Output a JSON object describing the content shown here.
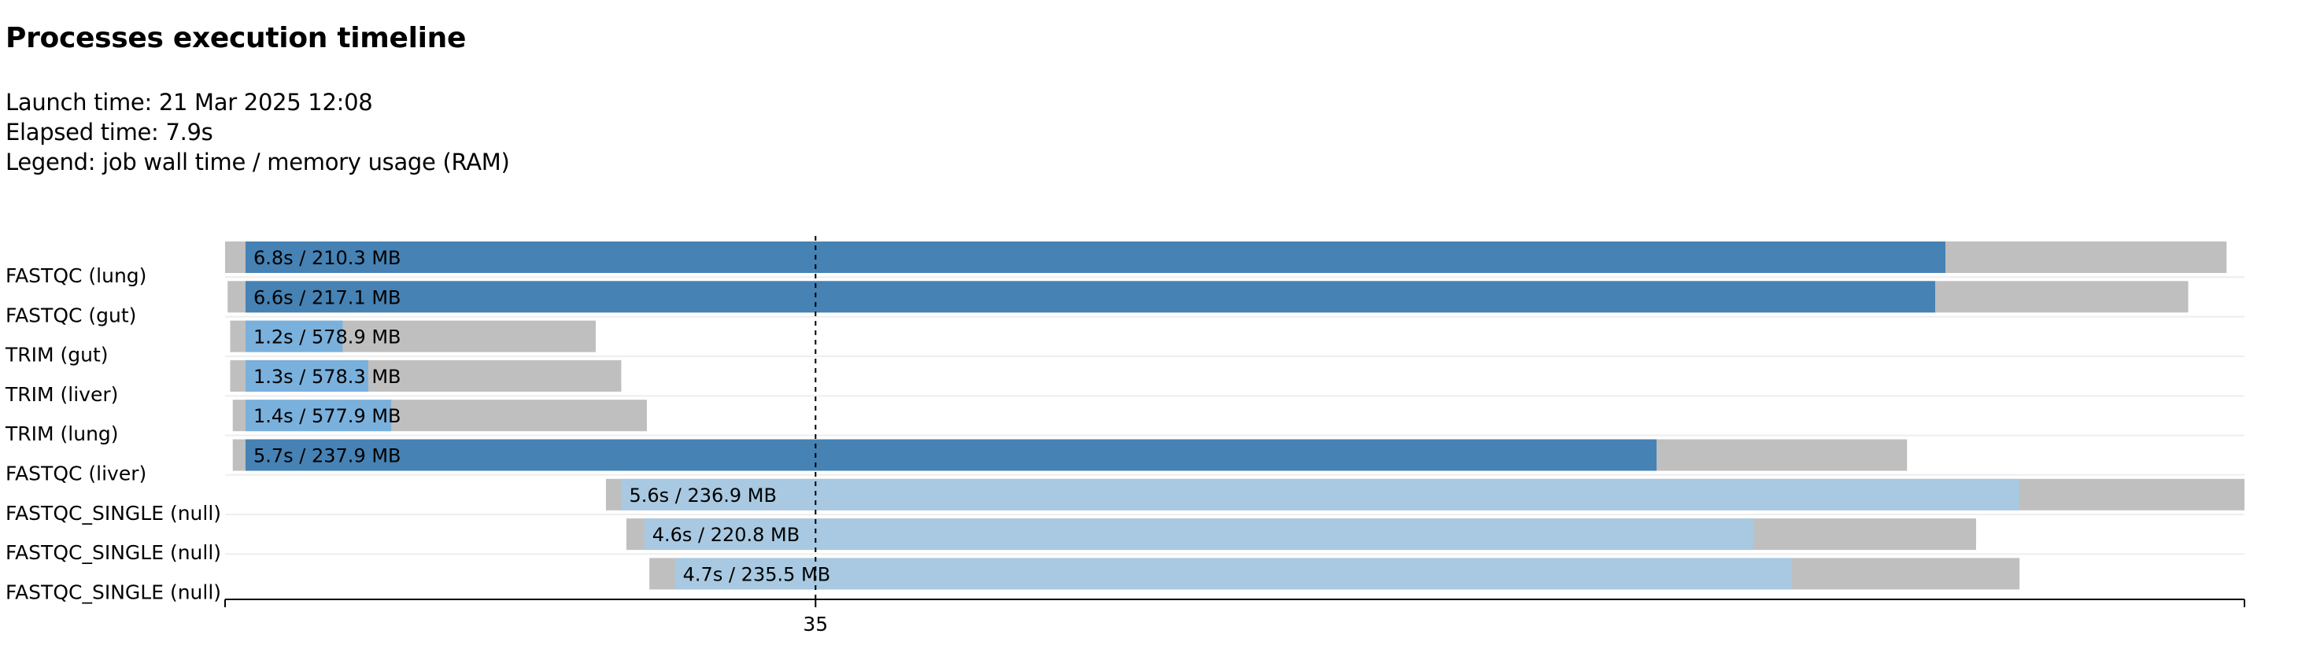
{
  "page": {
    "title": "Processes execution timeline",
    "launch_time": "Launch time: 21 Mar 2025 12:08",
    "elapsed_time": "Elapsed time: 7.9s",
    "legend": "Legend: job wall time / memory usage (RAM)"
  },
  "colors": {
    "fastqc": "#4682b4",
    "trim": "#7ab0dc",
    "fastqc_single": "#a8c9e1",
    "overhead": "#bfbfbf",
    "divider": "#eeeeee",
    "axis": "#000000"
  },
  "chart_data": {
    "type": "timeline",
    "title": "Processes execution timeline",
    "x_domain": [
      0,
      7.9
    ],
    "marker": {
      "label": "35",
      "value": 2.31
    },
    "rows": [
      {
        "label": "FASTQC (lung)",
        "submit": 0.0,
        "start": 0.08,
        "complete": 6.73,
        "end": 7.83,
        "annotation": "6.8s / 210.3 MB",
        "color_key": "fastqc"
      },
      {
        "label": "FASTQC (gut)",
        "submit": 0.01,
        "start": 0.08,
        "complete": 6.69,
        "end": 7.68,
        "annotation": "6.6s / 217.1 MB",
        "color_key": "fastqc"
      },
      {
        "label": "TRIM (gut)",
        "submit": 0.02,
        "start": 0.08,
        "complete": 0.46,
        "end": 1.45,
        "annotation": "1.2s / 578.9 MB",
        "color_key": "trim"
      },
      {
        "label": "TRIM (liver)",
        "submit": 0.02,
        "start": 0.08,
        "complete": 0.56,
        "end": 1.55,
        "annotation": "1.3s / 578.3 MB",
        "color_key": "trim"
      },
      {
        "label": "TRIM (lung)",
        "submit": 0.03,
        "start": 0.08,
        "complete": 0.65,
        "end": 1.65,
        "annotation": "1.4s / 577.9 MB",
        "color_key": "trim"
      },
      {
        "label": "FASTQC (liver)",
        "submit": 0.03,
        "start": 0.08,
        "complete": 5.6,
        "end": 6.58,
        "annotation": "5.7s / 237.9 MB",
        "color_key": "fastqc"
      },
      {
        "label": "FASTQC_SINGLE (null)",
        "submit": 1.49,
        "start": 1.55,
        "complete": 7.02,
        "end": 7.9,
        "annotation": "5.6s / 236.9 MB",
        "color_key": "fastqc_single"
      },
      {
        "label": "FASTQC_SINGLE (null)",
        "submit": 1.57,
        "start": 1.64,
        "complete": 5.98,
        "end": 6.85,
        "annotation": "4.6s / 220.8 MB",
        "color_key": "fastqc_single"
      },
      {
        "label": "FASTQC_SINGLE (null)",
        "submit": 1.66,
        "start": 1.76,
        "complete": 6.13,
        "end": 7.02,
        "annotation": "4.7s / 235.5 MB",
        "color_key": "fastqc_single"
      }
    ]
  }
}
